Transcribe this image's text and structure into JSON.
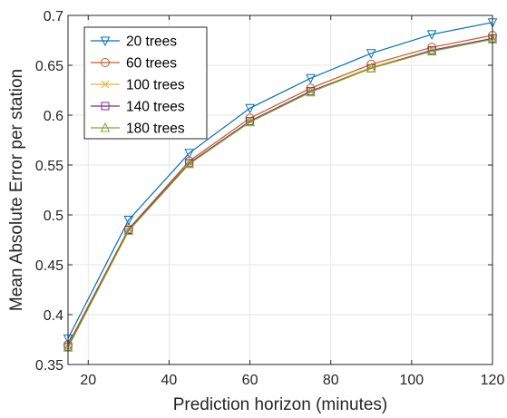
{
  "chart_data": {
    "type": "line",
    "title": "",
    "xlabel": "Prediction horizon (minutes)",
    "ylabel": "Mean Absolute Error per station",
    "xlim": [
      15,
      120
    ],
    "ylim": [
      0.35,
      0.7
    ],
    "xticks": [
      20,
      40,
      60,
      80,
      100,
      120
    ],
    "yticks": [
      0.35,
      0.4,
      0.45,
      0.5,
      0.55,
      0.6,
      0.65,
      0.7
    ],
    "ytick_labels": [
      "0.35",
      "0.4",
      "0.45",
      "0.5",
      "0.55",
      "0.6",
      "0.65",
      "0.7"
    ],
    "grid": true,
    "legend_position": "top-left",
    "x": [
      15,
      30,
      45,
      60,
      75,
      90,
      105,
      120
    ],
    "series": [
      {
        "name": "20 trees",
        "color": "#0072BD",
        "marker": "triangle-down",
        "values": [
          0.376,
          0.495,
          0.562,
          0.607,
          0.637,
          0.662,
          0.681,
          0.693
        ]
      },
      {
        "name": "60 trees",
        "color": "#D95319",
        "marker": "circle",
        "values": [
          0.37,
          0.486,
          0.554,
          0.597,
          0.627,
          0.651,
          0.668,
          0.68
        ]
      },
      {
        "name": "100 trees",
        "color": "#EDB120",
        "marker": "x",
        "values": [
          0.368,
          0.485,
          0.552,
          0.594,
          0.624,
          0.648,
          0.665,
          0.677
        ]
      },
      {
        "name": "140 trees",
        "color": "#7E2F8E",
        "marker": "square",
        "values": [
          0.368,
          0.485,
          0.552,
          0.594,
          0.624,
          0.647,
          0.665,
          0.677
        ]
      },
      {
        "name": "180 trees",
        "color": "#77AC30",
        "marker": "triangle-up",
        "values": [
          0.367,
          0.484,
          0.551,
          0.593,
          0.623,
          0.647,
          0.664,
          0.676
        ]
      }
    ]
  }
}
